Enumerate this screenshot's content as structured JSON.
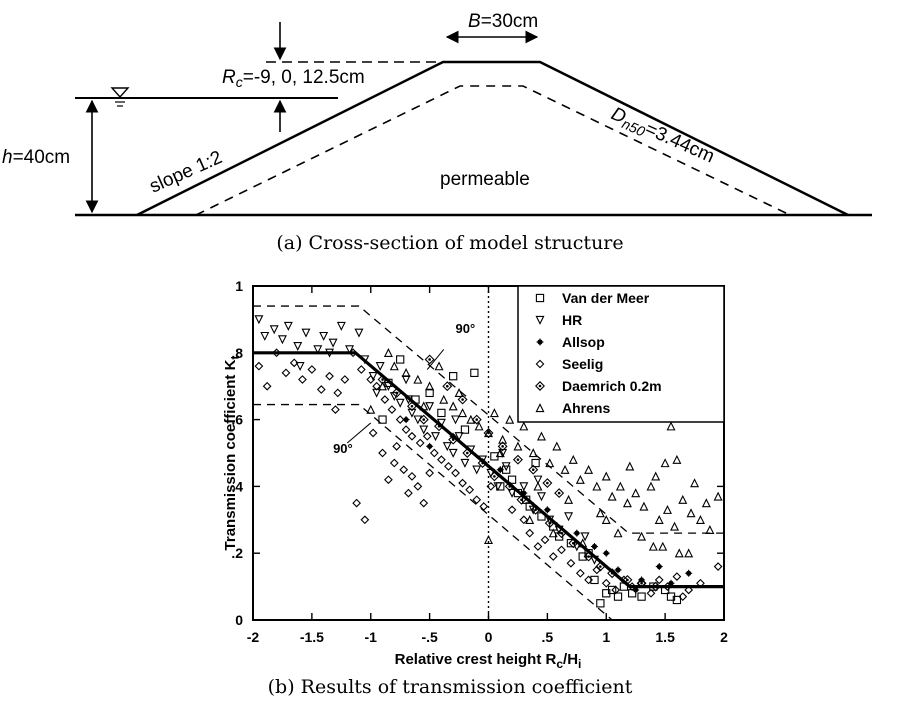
{
  "cross_section": {
    "crest_width_label": "=30cm",
    "crest_width_symbol": "B",
    "rc_symbol": "R",
    "rc_sub": "c",
    "rc_values": "=-9, 0, 12.5cm",
    "h_symbol": "h",
    "h_value": "=40cm",
    "slope_label": "slope 1:2",
    "dn50_symbol": "D",
    "dn50_sub": "n50",
    "dn50_value": "=3.44cm",
    "core_label": "permeable",
    "caption": "(a) Cross-section of model structure"
  },
  "chart_data": {
    "type": "scatter",
    "caption": "(b) Results of transmission coefficient",
    "xlabel": "Relative crest height R",
    "xlabel_sub": "c",
    "xlabel_tail": "/H",
    "xlabel_tail_sub": "i",
    "ylabel": "Transmission coefficient K",
    "ylabel_sub": "t",
    "xlim": [
      -2,
      2
    ],
    "ylim": [
      0,
      1
    ],
    "x_ticks": [
      {
        "v": -2,
        "label": "-2"
      },
      {
        "v": -1.5,
        "label": "-1.5"
      },
      {
        "v": -1,
        "label": "-1"
      },
      {
        "v": -0.5,
        "label": "-.5"
      },
      {
        "v": 0,
        "label": "0"
      },
      {
        "v": 0.5,
        "label": ".5"
      },
      {
        "v": 1,
        "label": "1"
      },
      {
        "v": 1.5,
        "label": "1.5"
      },
      {
        "v": 2,
        "label": "2"
      }
    ],
    "y_ticks": [
      {
        "v": 0,
        "label": "0"
      },
      {
        "v": 0.2,
        "label": ".2"
      },
      {
        "v": 0.4,
        "label": ".4"
      },
      {
        "v": 0.6,
        "label": ".6"
      },
      {
        "v": 0.8,
        "label": ".8"
      },
      {
        "v": 1,
        "label": "1"
      }
    ],
    "design_curve": [
      [
        -2,
        0.8
      ],
      [
        -1.13,
        0.8
      ],
      [
        1.2,
        0.1
      ],
      [
        2,
        0.1
      ]
    ],
    "upper_bound": [
      [
        -2,
        0.94
      ],
      [
        -1.1,
        0.94
      ],
      [
        1.19,
        0.26
      ],
      [
        2,
        0.26
      ]
    ],
    "lower_bound": [
      [
        -2,
        0.645
      ],
      [
        -1.1,
        0.645
      ],
      [
        1.05,
        0
      ]
    ],
    "annotations": [
      {
        "text": "90°",
        "x": -0.28,
        "y": 0.86
      },
      {
        "text": "90°",
        "x": -1.32,
        "y": 0.5
      }
    ],
    "series": [
      {
        "name": "Van der Meer",
        "marker": "square",
        "points": [
          [
            -0.85,
            0.71
          ],
          [
            -0.62,
            0.66
          ],
          [
            -0.4,
            0.62
          ],
          [
            -0.2,
            0.57
          ],
          [
            -0.12,
            0.74
          ],
          [
            0.05,
            0.49
          ],
          [
            0.1,
            0.4
          ],
          [
            0.2,
            0.42
          ],
          [
            0.25,
            0.38
          ],
          [
            0.32,
            0.36
          ],
          [
            0.45,
            0.31
          ],
          [
            0.55,
            0.28
          ],
          [
            0.7,
            0.23
          ],
          [
            0.8,
            0.19
          ],
          [
            0.9,
            0.12
          ],
          [
            0.95,
            0.05
          ],
          [
            1.0,
            0.08
          ],
          [
            1.05,
            0.09
          ],
          [
            1.1,
            0.07
          ],
          [
            1.15,
            0.1
          ],
          [
            1.22,
            0.08
          ],
          [
            1.3,
            0.07
          ],
          [
            1.4,
            0.1
          ],
          [
            1.5,
            0.09
          ],
          [
            1.55,
            0.07
          ],
          [
            1.6,
            0.06
          ],
          [
            -0.3,
            0.73
          ],
          [
            -0.5,
            0.68
          ],
          [
            0.15,
            0.45
          ],
          [
            0.35,
            0.34
          ],
          [
            0.6,
            0.25
          ],
          [
            0.85,
            0.2
          ],
          [
            -0.9,
            0.6
          ],
          [
            -0.75,
            0.78
          ],
          [
            0.4,
            0.47
          ]
        ]
      },
      {
        "name": "HR",
        "marker": "triangle-down",
        "points": [
          [
            -1.95,
            0.9
          ],
          [
            -1.9,
            0.85
          ],
          [
            -1.82,
            0.87
          ],
          [
            -1.75,
            0.84
          ],
          [
            -1.7,
            0.88
          ],
          [
            -1.62,
            0.82
          ],
          [
            -1.55,
            0.86
          ],
          [
            -1.45,
            0.81
          ],
          [
            -1.4,
            0.85
          ],
          [
            -1.32,
            0.83
          ],
          [
            -1.25,
            0.88
          ],
          [
            -1.18,
            0.81
          ],
          [
            -1.1,
            0.86
          ],
          [
            -1.05,
            0.78
          ],
          [
            -0.98,
            0.73
          ],
          [
            -0.92,
            0.76
          ],
          [
            -0.85,
            0.7
          ],
          [
            -0.8,
            0.67
          ],
          [
            -0.75,
            0.65
          ],
          [
            -0.7,
            0.72
          ],
          [
            -0.65,
            0.62
          ],
          [
            -0.6,
            0.6
          ],
          [
            -0.55,
            0.57
          ],
          [
            -0.5,
            0.64
          ],
          [
            -0.45,
            0.55
          ],
          [
            -0.4,
            0.59
          ],
          [
            -0.35,
            0.52
          ],
          [
            -0.3,
            0.5
          ],
          [
            -0.25,
            0.55
          ],
          [
            -0.2,
            0.47
          ],
          [
            -0.15,
            0.51
          ],
          [
            -0.1,
            0.45
          ],
          [
            -0.05,
            0.48
          ],
          [
            0.02,
            0.44
          ],
          [
            0.08,
            0.4
          ],
          [
            0.15,
            0.46
          ],
          [
            0.2,
            0.38
          ],
          [
            0.3,
            0.4
          ],
          [
            0.38,
            0.33
          ],
          [
            0.45,
            0.37
          ],
          [
            0.52,
            0.3
          ],
          [
            0.6,
            0.27
          ],
          [
            0.68,
            0.31
          ],
          [
            0.75,
            0.22
          ],
          [
            0.82,
            0.25
          ],
          [
            0.9,
            0.18
          ],
          [
            -1.6,
            0.76
          ],
          [
            -1.35,
            0.8
          ],
          [
            -0.95,
            0.68
          ],
          [
            -0.68,
            0.66
          ],
          [
            -0.28,
            0.6
          ],
          [
            0.12,
            0.5
          ],
          [
            0.42,
            0.42
          ]
        ]
      },
      {
        "name": "Allsop",
        "marker": "star",
        "points": [
          [
            -0.7,
            0.6
          ],
          [
            -0.3,
            0.55
          ],
          [
            0.1,
            0.45
          ],
          [
            0.5,
            0.33
          ],
          [
            0.75,
            0.26
          ],
          [
            1.0,
            0.2
          ],
          [
            1.1,
            0.15
          ],
          [
            1.3,
            0.12
          ],
          [
            1.45,
            0.16
          ],
          [
            1.55,
            0.11
          ],
          [
            1.7,
            0.14
          ],
          [
            1.25,
            0.09
          ],
          [
            -0.5,
            0.52
          ],
          [
            0.3,
            0.38
          ],
          [
            0.9,
            0.22
          ]
        ]
      },
      {
        "name": "Seelig",
        "marker": "diamond",
        "points": [
          [
            -1.95,
            0.76
          ],
          [
            -1.88,
            0.7
          ],
          [
            -1.8,
            0.8
          ],
          [
            -1.72,
            0.74
          ],
          [
            -1.65,
            0.77
          ],
          [
            -1.58,
            0.72
          ],
          [
            -1.5,
            0.75
          ],
          [
            -1.42,
            0.69
          ],
          [
            -1.35,
            0.73
          ],
          [
            -1.28,
            0.68
          ],
          [
            -1.22,
            0.72
          ],
          [
            -1.15,
            0.8
          ],
          [
            -1.08,
            0.75
          ],
          [
            -1.0,
            0.72
          ],
          [
            -0.95,
            0.7
          ],
          [
            -0.88,
            0.66
          ],
          [
            -0.82,
            0.63
          ],
          [
            -0.75,
            0.6
          ],
          [
            -0.7,
            0.57
          ],
          [
            -0.65,
            0.55
          ],
          [
            -0.58,
            0.53
          ],
          [
            -0.52,
            0.55
          ],
          [
            -0.46,
            0.5
          ],
          [
            -0.4,
            0.48
          ],
          [
            -0.34,
            0.46
          ],
          [
            -0.28,
            0.44
          ],
          [
            -0.22,
            0.41
          ],
          [
            -0.16,
            0.39
          ],
          [
            -0.1,
            0.36
          ],
          [
            -0.04,
            0.34
          ],
          [
            -0.9,
            0.5
          ],
          [
            -0.8,
            0.47
          ],
          [
            -0.72,
            0.45
          ],
          [
            -0.65,
            0.43
          ],
          [
            -0.6,
            0.4
          ],
          [
            -1.05,
            0.3
          ],
          [
            -1.12,
            0.35
          ],
          [
            -0.85,
            0.42
          ],
          [
            -0.5,
            0.44
          ],
          [
            0.3,
            0.3
          ],
          [
            0.35,
            0.26
          ],
          [
            0.42,
            0.22
          ],
          [
            0.48,
            0.24
          ],
          [
            0.55,
            0.19
          ],
          [
            0.62,
            0.21
          ],
          [
            0.7,
            0.17
          ],
          [
            0.78,
            0.14
          ],
          [
            0.85,
            0.12
          ],
          [
            0.92,
            0.15
          ],
          [
            1.0,
            0.11
          ],
          [
            1.08,
            0.09
          ],
          [
            1.15,
            0.12
          ],
          [
            1.22,
            0.1
          ],
          [
            1.3,
            0.11
          ],
          [
            1.38,
            0.08
          ],
          [
            1.45,
            0.12
          ],
          [
            1.52,
            0.1
          ],
          [
            1.6,
            0.13
          ],
          [
            1.7,
            0.09
          ],
          [
            1.8,
            0.11
          ],
          [
            1.95,
            0.16
          ],
          [
            1.65,
            0.07
          ],
          [
            -1.3,
            0.63
          ],
          [
            -0.98,
            0.56
          ],
          [
            -0.78,
            0.52
          ],
          [
            -0.68,
            0.38
          ],
          [
            -0.55,
            0.35
          ],
          [
            0.02,
            0.4
          ],
          [
            0.2,
            0.33
          ]
        ]
      },
      {
        "name": "Daemrich 0.2m",
        "marker": "diamond-dot",
        "points": [
          [
            -0.9,
            0.72
          ],
          [
            -0.78,
            0.68
          ],
          [
            -0.65,
            0.64
          ],
          [
            -0.55,
            0.6
          ],
          [
            -0.42,
            0.58
          ],
          [
            -0.3,
            0.54
          ],
          [
            -0.18,
            0.5
          ],
          [
            -0.05,
            0.47
          ],
          [
            0.05,
            0.43
          ],
          [
            0.18,
            0.4
          ],
          [
            0.28,
            0.36
          ],
          [
            0.4,
            0.33
          ],
          [
            0.52,
            0.29
          ],
          [
            0.62,
            0.26
          ],
          [
            0.72,
            0.23
          ],
          [
            0.85,
            0.19
          ],
          [
            0.95,
            0.16
          ],
          [
            1.05,
            0.14
          ],
          [
            1.18,
            0.12
          ],
          [
            1.3,
            0.11
          ],
          [
            1.42,
            0.1
          ],
          [
            -0.5,
            0.78
          ],
          [
            -0.35,
            0.7
          ],
          [
            -0.22,
            0.66
          ],
          [
            -0.1,
            0.6
          ],
          [
            0.0,
            0.56
          ],
          [
            0.12,
            0.52
          ],
          [
            0.25,
            0.48
          ],
          [
            0.38,
            0.45
          ],
          [
            0.5,
            0.41
          ],
          [
            0.6,
            0.38
          ]
        ]
      },
      {
        "name": "Ahrens",
        "marker": "triangle-up",
        "points": [
          [
            -1.0,
            0.63
          ],
          [
            -0.9,
            0.7
          ],
          [
            -0.85,
            0.8
          ],
          [
            -0.8,
            0.76
          ],
          [
            -0.7,
            0.74
          ],
          [
            -0.6,
            0.72
          ],
          [
            -0.5,
            0.7
          ],
          [
            -0.42,
            0.76
          ],
          [
            -0.38,
            0.66
          ],
          [
            -0.3,
            0.64
          ],
          [
            -0.22,
            0.62
          ],
          [
            -0.15,
            0.6
          ],
          [
            -0.08,
            0.58
          ],
          [
            0.0,
            0.56
          ],
          [
            0.05,
            0.62
          ],
          [
            0.12,
            0.54
          ],
          [
            0.18,
            0.6
          ],
          [
            0.25,
            0.52
          ],
          [
            0.3,
            0.58
          ],
          [
            0.38,
            0.5
          ],
          [
            0.45,
            0.55
          ],
          [
            0.52,
            0.47
          ],
          [
            0.58,
            0.52
          ],
          [
            0.65,
            0.45
          ],
          [
            0.72,
            0.48
          ],
          [
            0.78,
            0.42
          ],
          [
            0.85,
            0.45
          ],
          [
            0.92,
            0.4
          ],
          [
            1.0,
            0.43
          ],
          [
            1.05,
            0.37
          ],
          [
            1.12,
            0.4
          ],
          [
            1.18,
            0.35
          ],
          [
            1.25,
            0.38
          ],
          [
            1.32,
            0.34
          ],
          [
            1.38,
            0.4
          ],
          [
            1.45,
            0.3
          ],
          [
            1.52,
            0.33
          ],
          [
            1.58,
            0.28
          ],
          [
            1.65,
            0.36
          ],
          [
            1.72,
            0.32
          ],
          [
            1.8,
            0.3
          ],
          [
            1.88,
            0.27
          ],
          [
            1.95,
            0.37
          ],
          [
            1.2,
            0.46
          ],
          [
            1.42,
            0.43
          ],
          [
            1.5,
            0.47
          ],
          [
            1.55,
            0.58
          ],
          [
            1.6,
            0.48
          ],
          [
            1.75,
            0.41
          ],
          [
            1.85,
            0.35
          ],
          [
            1.4,
            0.22
          ],
          [
            1.7,
            0.2
          ],
          [
            0.0,
            0.24
          ],
          [
            0.35,
            0.3
          ],
          [
            0.55,
            0.26
          ],
          [
            0.8,
            0.23
          ],
          [
            1.0,
            0.3
          ],
          [
            1.1,
            0.26
          ],
          [
            1.3,
            0.25
          ],
          [
            1.48,
            0.22
          ],
          [
            1.62,
            0.2
          ],
          [
            -0.55,
            0.64
          ],
          [
            -0.25,
            0.68
          ],
          [
            0.1,
            0.5
          ],
          [
            0.42,
            0.4
          ],
          [
            0.68,
            0.36
          ],
          [
            0.95,
            0.32
          ]
        ]
      }
    ],
    "legend_position": "top-right"
  }
}
